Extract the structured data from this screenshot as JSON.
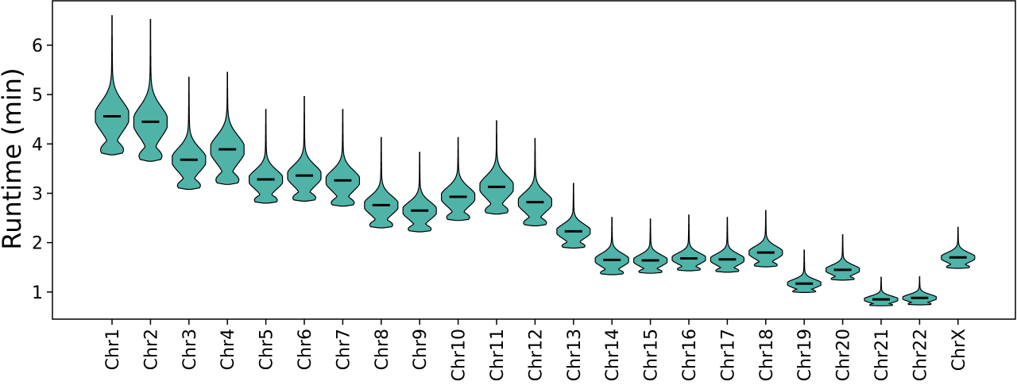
{
  "chart_data": {
    "type": "violin",
    "title": "",
    "xlabel": "",
    "ylabel": "Runtime (min)",
    "ylim": [
      0.45,
      6.9
    ],
    "yticks": [
      1,
      2,
      3,
      4,
      5,
      6
    ],
    "grid": false,
    "colors": {
      "fill": "#4fb3a8",
      "stroke": "#000000",
      "median": "#000000"
    },
    "categories": [
      "Chr1",
      "Chr2",
      "Chr3",
      "Chr4",
      "Chr5",
      "Chr6",
      "Chr7",
      "Chr8",
      "Chr9",
      "Chr10",
      "Chr11",
      "Chr12",
      "Chr13",
      "Chr14",
      "Chr15",
      "Chr16",
      "Chr17",
      "Chr18",
      "Chr19",
      "Chr20",
      "Chr21",
      "Chr22",
      "ChrX"
    ],
    "medians": [
      4.56,
      4.45,
      3.68,
      3.89,
      3.28,
      3.36,
      3.26,
      2.76,
      2.65,
      2.93,
      3.13,
      2.82,
      2.23,
      1.65,
      1.64,
      1.68,
      1.66,
      1.8,
      1.17,
      1.45,
      0.85,
      0.88,
      1.7
    ],
    "min": [
      3.78,
      3.65,
      3.08,
      3.18,
      2.8,
      2.84,
      2.74,
      2.3,
      2.22,
      2.45,
      2.58,
      2.34,
      1.89,
      1.35,
      1.38,
      1.43,
      1.4,
      1.51,
      0.99,
      1.24,
      0.72,
      0.74,
      1.48
    ],
    "max": [
      6.6,
      6.52,
      5.35,
      5.45,
      4.7,
      4.96,
      4.7,
      4.13,
      3.83,
      4.13,
      4.47,
      4.11,
      3.2,
      2.51,
      2.48,
      2.56,
      2.51,
      2.65,
      1.85,
      2.16,
      1.3,
      1.31,
      2.31
    ]
  }
}
